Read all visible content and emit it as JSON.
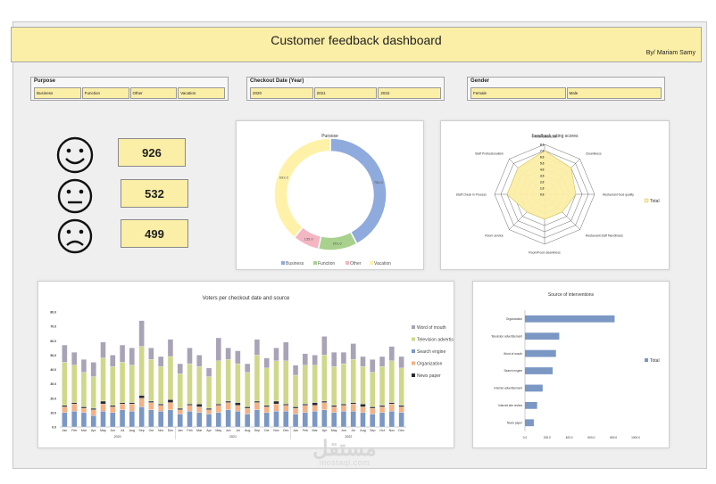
{
  "header": {
    "title": "Customer feedback dashboard",
    "author": "By/ Mariam Samy"
  },
  "slicers": [
    {
      "label": "Purpose",
      "items": [
        "Business",
        "Function",
        "Other",
        "Vacation"
      ]
    },
    {
      "label": "Checkout Date (Year)",
      "items": [
        "2020",
        "2021",
        "2022"
      ]
    },
    {
      "label": "Gender",
      "items": [
        "Female",
        "Male"
      ]
    }
  ],
  "faces": [
    {
      "icon": "happy-face-icon",
      "value": "926"
    },
    {
      "icon": "neutral-face-icon",
      "value": "532"
    },
    {
      "icon": "sad-face-icon",
      "value": "499"
    }
  ],
  "colors": {
    "business": "#8faadc",
    "function": "#a9d18e",
    "other": "#f4b6c2",
    "vacation": "#fff2a8",
    "title_bg": "#fbeea6",
    "bar_blue": "#7b97c4",
    "bar_grey": "#9e9aa6"
  },
  "chart_data": [
    {
      "type": "pie",
      "title": "Purpose",
      "categories": [
        "Business",
        "Function",
        "Other",
        "Vacation"
      ],
      "values": [
        750.0,
        201.0,
        135.0,
        693.0
      ],
      "labels": [
        "750.0",
        "201.0",
        "135.0",
        "693.0"
      ],
      "legend": "bottom"
    },
    {
      "type": "radar",
      "title": "Feedback rating scores",
      "axes": [
        "Overall satisfaction",
        "Cleanliness",
        "Restaurant food quality",
        "Restaurant staff friendliness",
        "Room/Food cleanliness",
        "Room service",
        "Staff Check in Process",
        "Staff Professionalism"
      ],
      "series": [
        {
          "name": "Total",
          "values": [
            7,
            6,
            5,
            4,
            4,
            4,
            6,
            6
          ]
        }
      ],
      "rlim": [
        0,
        8
      ],
      "ticks": [
        "8.0",
        "7.0",
        "6.0",
        "5.0",
        "4.0",
        "3.0",
        "2.0",
        "1.0",
        "0.0"
      ],
      "legend": "right"
    },
    {
      "type": "bar",
      "stacked": true,
      "title": "Voters per checkout date and source",
      "categories": [
        "Jan",
        "Feb",
        "Mar",
        "Apr",
        "May",
        "Jun",
        "Jul",
        "Aug",
        "Sep",
        "Oct",
        "Nov",
        "Dec",
        "Jan",
        "Feb",
        "Mar",
        "Apr",
        "May",
        "Jun",
        "Jul",
        "Aug",
        "Sep",
        "Oct",
        "Nov",
        "Dec",
        "Jan",
        "Feb",
        "Mar",
        "Apr",
        "May",
        "Jun",
        "Jul",
        "Aug",
        "Sep",
        "Oct",
        "Nov",
        "Dec"
      ],
      "tick_labels": [
        "Jan",
        "Feb",
        "Mar",
        "Apr",
        "May",
        "Jun",
        "Jul",
        "Aug",
        "Sep",
        "Oct",
        "Nov",
        "Dec",
        "Jan",
        "Feb",
        "Mar",
        "Apr",
        "May",
        "Jun",
        "Jul",
        "Aug",
        "Sep",
        "Oct",
        "Nov",
        "Dec",
        "Jan",
        "Feb",
        "Mar",
        "Apr",
        "May",
        "Jun",
        "Jul",
        "Aug",
        "Sep",
        "Oct",
        "Nov",
        "Dec"
      ],
      "years": [
        "2020",
        "2021",
        "2022"
      ],
      "ylim": [
        0,
        80
      ],
      "yticks": [
        "0.0",
        "10.0",
        "20.0",
        "30.0",
        "40.0",
        "50.0",
        "60.0",
        "70.0",
        "80.0"
      ],
      "series": [
        {
          "name": "News paper",
          "values": [
            1,
            1,
            1,
            1,
            2,
            1,
            1,
            1,
            2,
            1,
            1,
            2,
            1,
            1,
            2,
            1,
            1,
            1,
            2,
            1,
            1,
            1,
            2,
            1,
            1,
            1,
            2,
            1,
            1,
            1,
            1,
            2,
            1,
            1,
            1,
            1
          ]
        },
        {
          "name": "Search engine",
          "values": [
            10,
            11,
            10,
            8,
            11,
            10,
            12,
            11,
            14,
            12,
            11,
            12,
            9,
            11,
            10,
            9,
            10,
            12,
            11,
            9,
            12,
            10,
            11,
            11,
            9,
            10,
            11,
            12,
            10,
            11,
            11,
            10,
            9,
            10,
            11,
            10
          ]
        },
        {
          "name": "Organization",
          "values": [
            4,
            5,
            3,
            4,
            5,
            4,
            4,
            5,
            6,
            5,
            4,
            5,
            3,
            4,
            4,
            3,
            5,
            5,
            4,
            4,
            5,
            4,
            5,
            4,
            4,
            5,
            4,
            5,
            4,
            4,
            5,
            4,
            4,
            4,
            5,
            4
          ]
        },
        {
          "name": "Television advertisement",
          "values": [
            30,
            26,
            24,
            22,
            30,
            27,
            28,
            26,
            34,
            29,
            26,
            30,
            24,
            28,
            26,
            22,
            30,
            29,
            27,
            24,
            32,
            26,
            28,
            30,
            22,
            27,
            26,
            32,
            27,
            28,
            30,
            26,
            24,
            27,
            29,
            26
          ]
        },
        {
          "name": "Word of mouth",
          "values": [
            12,
            9,
            9,
            10,
            11,
            8,
            12,
            12,
            18,
            8,
            7,
            12,
            7,
            11,
            8,
            6,
            16,
            8,
            9,
            6,
            11,
            7,
            9,
            13,
            7,
            8,
            7,
            13,
            10,
            8,
            11,
            7,
            9,
            7,
            10,
            8
          ]
        }
      ],
      "legend": "right"
    },
    {
      "type": "bar",
      "orientation": "horizontal",
      "title": "Source of interventions",
      "categories": [
        "Organization",
        "Television advertisement",
        "Word of mouth",
        "Search engine",
        "Internet advertisement",
        "Internet site review",
        "News paper"
      ],
      "values": [
        810,
        310,
        280,
        250,
        160,
        110,
        80
      ],
      "xlim": [
        0,
        1000
      ],
      "xticks": [
        "0.0",
        "200.0",
        "400.0",
        "600.0",
        "800.0",
        "1000.0"
      ],
      "legend_entries": [
        "Total"
      ]
    }
  ]
}
